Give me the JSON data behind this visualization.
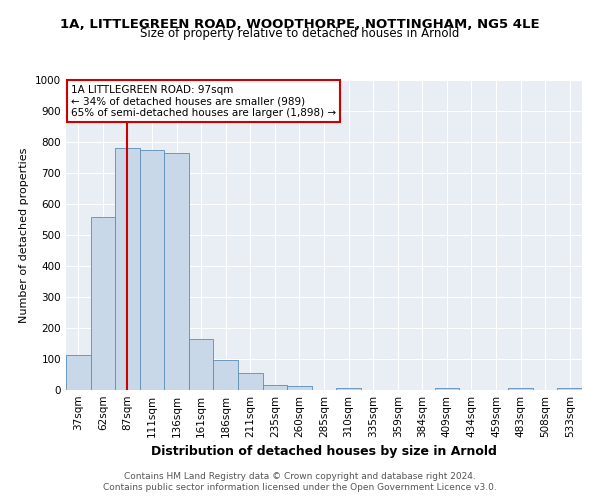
{
  "title_line1": "1A, LITTLEGREEN ROAD, WOODTHORPE, NOTTINGHAM, NG5 4LE",
  "title_line2": "Size of property relative to detached houses in Arnold",
  "xlabel": "Distribution of detached houses by size in Arnold",
  "ylabel": "Number of detached properties",
  "categories": [
    "37sqm",
    "62sqm",
    "87sqm",
    "111sqm",
    "136sqm",
    "161sqm",
    "186sqm",
    "211sqm",
    "235sqm",
    "260sqm",
    "285sqm",
    "310sqm",
    "335sqm",
    "359sqm",
    "384sqm",
    "409sqm",
    "434sqm",
    "459sqm",
    "483sqm",
    "508sqm",
    "533sqm"
  ],
  "values": [
    113,
    557,
    780,
    775,
    765,
    165,
    97,
    54,
    17,
    12,
    0,
    8,
    0,
    0,
    0,
    8,
    0,
    0,
    8,
    0,
    8
  ],
  "bar_color": "#c8d8e8",
  "bar_edge_color": "#5b8db8",
  "marker_index": 2,
  "marker_color": "#cc0000",
  "annotation_text": "1A LITTLEGREEN ROAD: 97sqm\n← 34% of detached houses are smaller (989)\n65% of semi-detached houses are larger (1,898) →",
  "annotation_box_color": "#ffffff",
  "annotation_box_edge": "#cc0000",
  "footer_line1": "Contains HM Land Registry data © Crown copyright and database right 2024.",
  "footer_line2": "Contains public sector information licensed under the Open Government Licence v3.0.",
  "plot_bg_color": "#e8eef4",
  "fig_bg_color": "#ffffff",
  "ylim": [
    0,
    1000
  ],
  "yticks": [
    0,
    100,
    200,
    300,
    400,
    500,
    600,
    700,
    800,
    900,
    1000
  ],
  "title1_fontsize": 9.5,
  "title2_fontsize": 8.5,
  "xlabel_fontsize": 9,
  "ylabel_fontsize": 8,
  "tick_fontsize": 7.5,
  "footer_fontsize": 6.5
}
